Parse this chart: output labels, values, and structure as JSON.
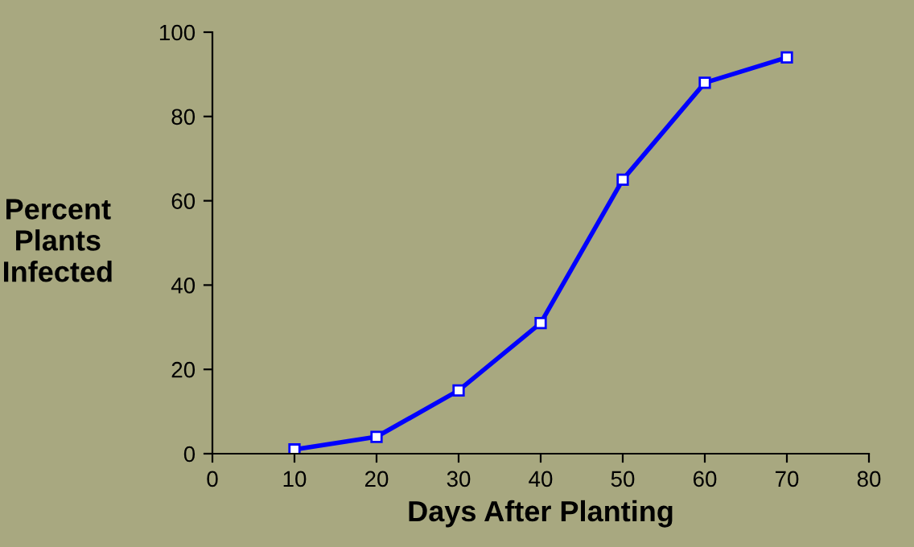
{
  "chart_data": {
    "type": "line",
    "xlabel": "Days After Planting",
    "ylabel": "Percent\nPlants\nInfected",
    "x": [
      10,
      20,
      30,
      40,
      50,
      60,
      70
    ],
    "series": [
      {
        "color": "#0000ff",
        "values": [
          1,
          4,
          15,
          31,
          65,
          88,
          94
        ]
      }
    ],
    "xlim": [
      0,
      80
    ],
    "xticks": [
      0,
      10,
      20,
      30,
      40,
      50,
      60,
      70,
      80
    ],
    "ylim": [
      0,
      100
    ],
    "yticks": [
      0,
      20,
      40,
      60,
      80,
      100
    ],
    "grid": false,
    "legend": false,
    "marker": "square",
    "line_style": "solid"
  }
}
